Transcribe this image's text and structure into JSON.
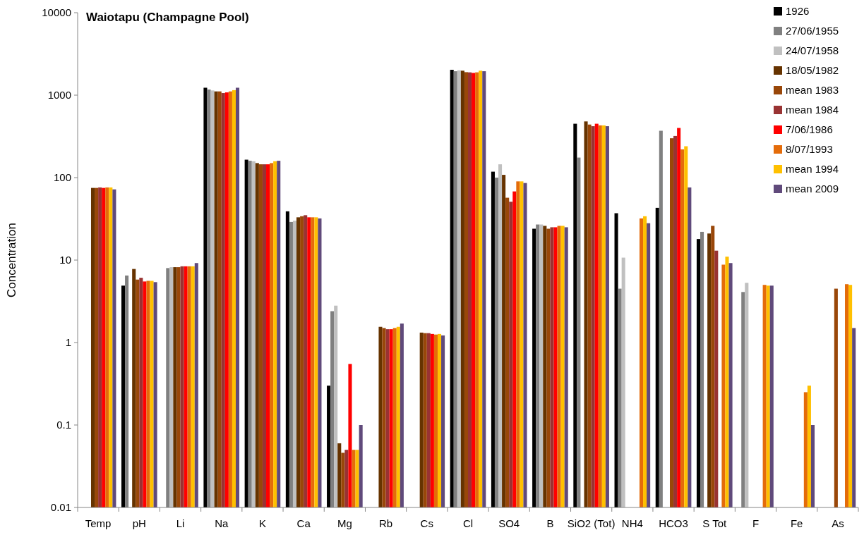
{
  "chart_data": {
    "type": "bar",
    "title": "Waiotapu (Champagne Pool)",
    "ylabel": "Concentration",
    "log": true,
    "ylim": [
      0.01,
      10000
    ],
    "yticks": [
      0.01,
      0.1,
      1,
      10,
      100,
      1000,
      10000
    ],
    "grid": false,
    "legend": "top right",
    "categories": [
      "Temp",
      "pH",
      "Li",
      "Na",
      "K",
      "Ca",
      "Mg",
      "Rb",
      "Cs",
      "Cl",
      "SO4",
      "B",
      "SiO2 (Tot)",
      "NH4",
      "HCO3",
      "S Tot",
      "F",
      "Fe",
      "As"
    ],
    "series": [
      {
        "name": "1926",
        "color": "#000000",
        "values": [
          null,
          4.9,
          null,
          1230,
          165,
          39,
          0.3,
          null,
          null,
          2030,
          118,
          24,
          450,
          37,
          43,
          18,
          null,
          null,
          null
        ]
      },
      {
        "name": "27/06/1955",
        "color": "#808080",
        "values": [
          null,
          6.5,
          8.0,
          1170,
          160,
          29,
          2.4,
          null,
          null,
          1950,
          100,
          27,
          175,
          4.5,
          370,
          22,
          4.1,
          null,
          null
        ]
      },
      {
        "name": "24/07/1958",
        "color": "#c0c0c0",
        "values": [
          null,
          null,
          8.2,
          1140,
          158,
          30,
          2.8,
          null,
          null,
          2000,
          145,
          27,
          null,
          10.7,
          null,
          null,
          5.3,
          null,
          null
        ]
      },
      {
        "name": "18/05/1982",
        "color": "#663300",
        "values": [
          75,
          7.8,
          8.2,
          1110,
          150,
          33,
          0.06,
          1.55,
          1.32,
          1980,
          108,
          26,
          480,
          null,
          null,
          21,
          null,
          null,
          null
        ]
      },
      {
        "name": "mean 1983",
        "color": "#994709",
        "values": [
          75,
          5.8,
          8.2,
          1110,
          145,
          34,
          0.046,
          1.5,
          1.3,
          1900,
          57,
          24,
          440,
          null,
          300,
          26,
          null,
          null,
          4.5
        ]
      },
      {
        "name": "mean 1984",
        "color": "#993333",
        "values": [
          76,
          6.1,
          8.4,
          1060,
          145,
          35,
          0.05,
          1.45,
          1.3,
          1890,
          51,
          25,
          420,
          null,
          320,
          13,
          null,
          null,
          null
        ]
      },
      {
        "name": "7/06/1986",
        "color": "#ff0000",
        "values": [
          75,
          5.5,
          8.4,
          1080,
          145,
          33,
          0.55,
          1.45,
          1.27,
          1860,
          68,
          25,
          450,
          null,
          400,
          null,
          null,
          null,
          null
        ]
      },
      {
        "name": "8/07/1993",
        "color": "#e46c0a",
        "values": [
          76,
          5.6,
          8.4,
          1110,
          150,
          33,
          0.05,
          1.5,
          1.25,
          1890,
          90,
          26,
          430,
          32,
          220,
          8.8,
          5.0,
          0.25,
          5.1
        ]
      },
      {
        "name": "mean 1994",
        "color": "#ffc000",
        "values": [
          76,
          5.6,
          8.4,
          1150,
          158,
          33,
          0.05,
          1.55,
          1.27,
          1980,
          90,
          26,
          430,
          34,
          240,
          11,
          4.9,
          0.3,
          5.0
        ]
      },
      {
        "name": "mean 2009",
        "color": "#604a7b",
        "values": [
          72,
          5.4,
          9.2,
          1230,
          160,
          32,
          0.1,
          1.7,
          1.22,
          1950,
          86,
          25,
          420,
          28,
          76,
          9.2,
          4.9,
          0.1,
          1.5
        ]
      }
    ]
  }
}
